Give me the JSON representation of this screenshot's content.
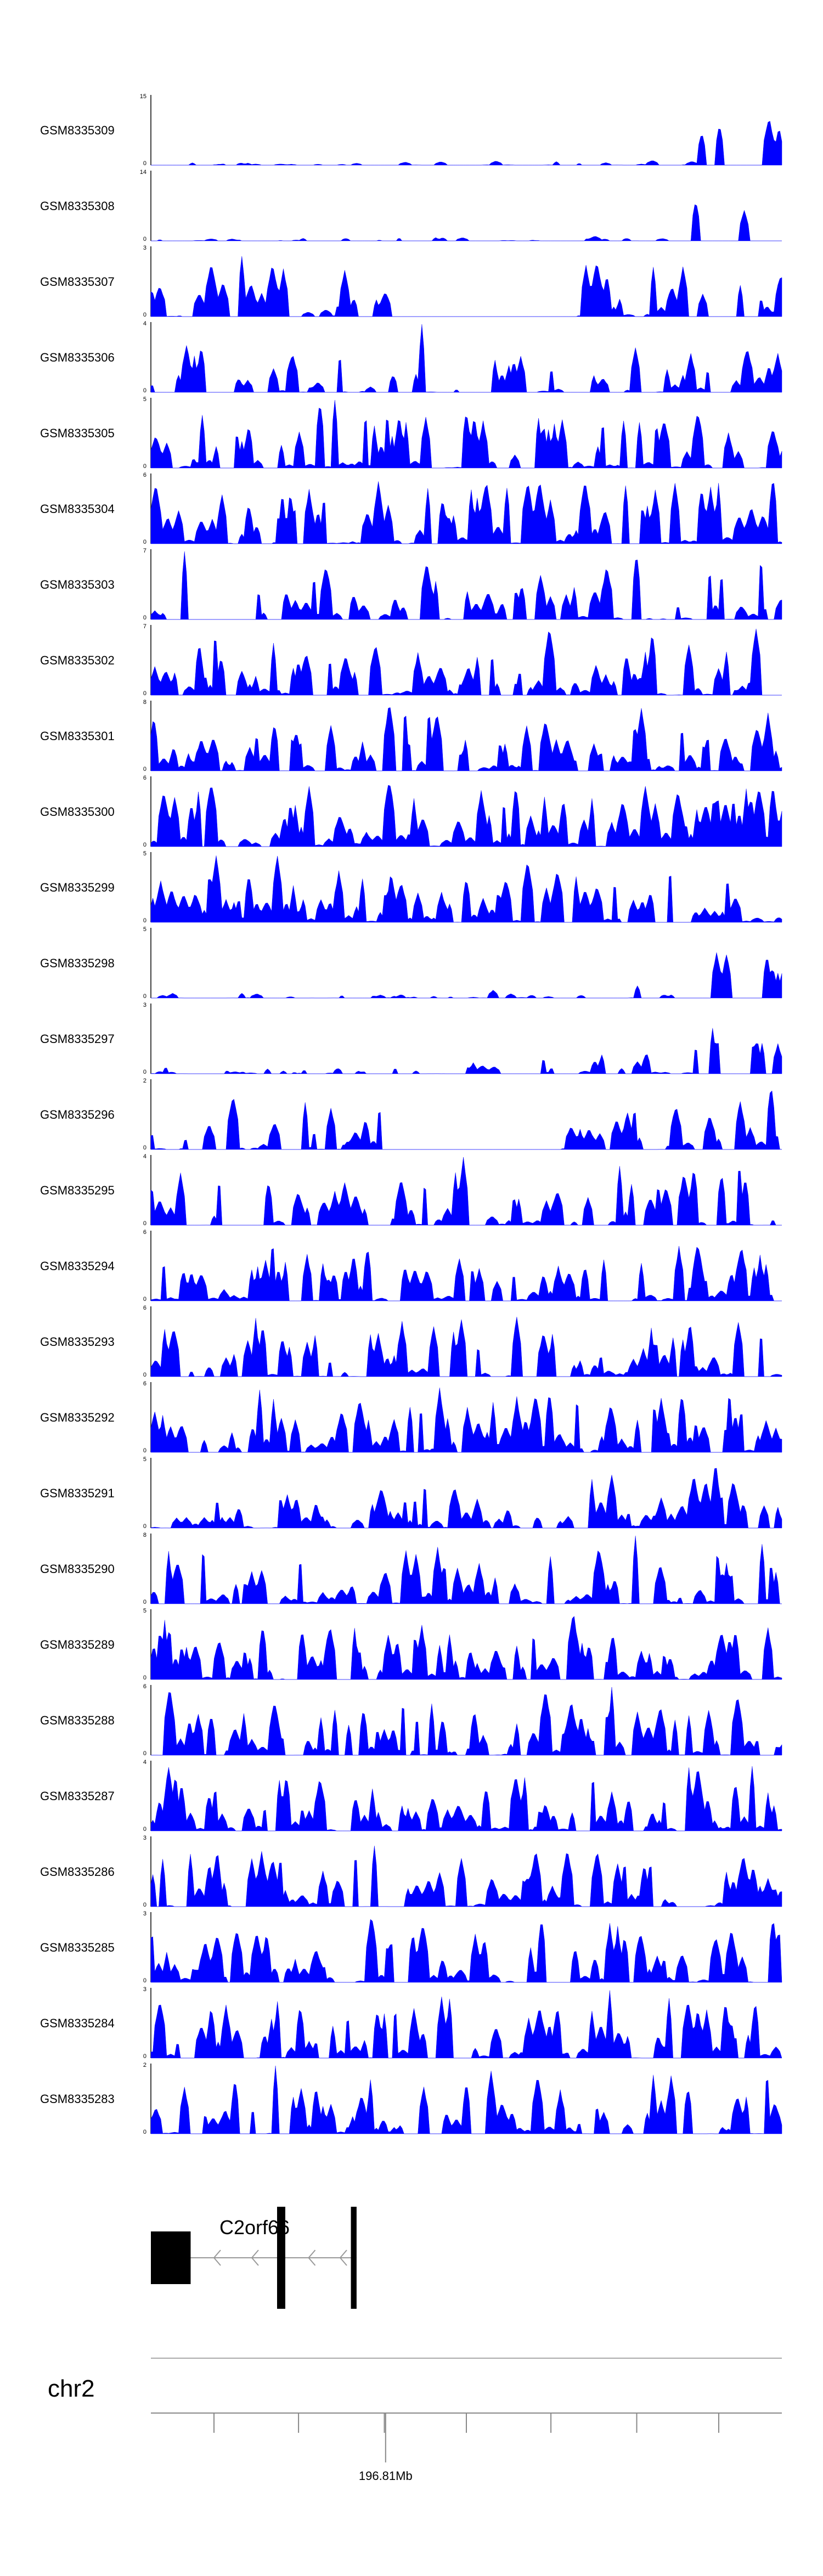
{
  "colors": {
    "signal": "#0000ff",
    "axis": "#000000",
    "intron": "#999999",
    "background": "#ffffff"
  },
  "chart_data": {
    "type": "area",
    "title": "",
    "tracks": [
      {
        "name": "GSM8335309",
        "ymax": "15",
        "ymin": "0",
        "max": 15,
        "profile": "rise",
        "sparse": 0.62,
        "peak": 0.28,
        "seed": 309
      },
      {
        "name": "GSM8335308",
        "ymax": "14",
        "ymin": "0",
        "max": 14,
        "profile": "rise",
        "sparse": 0.55,
        "peak": 0.32,
        "seed": 308
      },
      {
        "name": "GSM8335307",
        "ymax": "3",
        "ymin": "0",
        "max": 3,
        "profile": "sparse-gap",
        "sparse": 0.3,
        "peak": 0.85,
        "seed": 307
      },
      {
        "name": "GSM8335306",
        "ymax": "4",
        "ymin": "0",
        "max": 4,
        "profile": "sparse",
        "sparse": 0.35,
        "peak": 0.7,
        "seed": 306
      },
      {
        "name": "GSM8335305",
        "ymax": "5",
        "ymin": "0",
        "max": 5,
        "profile": "flat",
        "sparse": 0.12,
        "peak": 0.95,
        "seed": 305
      },
      {
        "name": "GSM8335304",
        "ymax": "6",
        "ymin": "0",
        "max": 6,
        "profile": "flat",
        "sparse": 0.1,
        "peak": 0.95,
        "seed": 304
      },
      {
        "name": "GSM8335303",
        "ymax": "7",
        "ymin": "0",
        "max": 7,
        "profile": "flat",
        "sparse": 0.3,
        "peak": 0.95,
        "seed": 303
      },
      {
        "name": "GSM8335302",
        "ymax": "7",
        "ymin": "0",
        "max": 7,
        "profile": "flat",
        "sparse": 0.15,
        "peak": 0.95,
        "seed": 302
      },
      {
        "name": "GSM8335301",
        "ymax": "8",
        "ymin": "0",
        "max": 8,
        "profile": "flat",
        "sparse": 0.12,
        "peak": 0.95,
        "seed": 301
      },
      {
        "name": "GSM8335300",
        "ymax": "6",
        "ymin": "0",
        "max": 6,
        "profile": "flat",
        "sparse": 0.12,
        "peak": 0.95,
        "seed": 300
      },
      {
        "name": "GSM8335299",
        "ymax": "5",
        "ymin": "0",
        "max": 5,
        "profile": "flat",
        "sparse": 0.1,
        "peak": 0.95,
        "seed": 299
      },
      {
        "name": "GSM8335298",
        "ymax": "5",
        "ymin": "0",
        "max": 5,
        "profile": "rise",
        "sparse": 0.4,
        "peak": 0.35,
        "seed": 298
      },
      {
        "name": "GSM8335297",
        "ymax": "3",
        "ymin": "0",
        "max": 3,
        "profile": "rise",
        "sparse": 0.35,
        "peak": 0.6,
        "seed": 297
      },
      {
        "name": "GSM8335296",
        "ymax": "2",
        "ymin": "0",
        "max": 2,
        "profile": "sparse-gap",
        "sparse": 0.3,
        "peak": 0.8,
        "seed": 296
      },
      {
        "name": "GSM8335295",
        "ymax": "4",
        "ymin": "0",
        "max": 4,
        "profile": "flat",
        "sparse": 0.25,
        "peak": 0.9,
        "seed": 295
      },
      {
        "name": "GSM8335294",
        "ymax": "6",
        "ymin": "0",
        "max": 6,
        "profile": "flat",
        "sparse": 0.15,
        "peak": 0.9,
        "seed": 294
      },
      {
        "name": "GSM8335293",
        "ymax": "6",
        "ymin": "0",
        "max": 6,
        "profile": "flat",
        "sparse": 0.1,
        "peak": 0.95,
        "seed": 293
      },
      {
        "name": "GSM8335292",
        "ymax": "6",
        "ymin": "0",
        "max": 6,
        "profile": "flat",
        "sparse": 0.12,
        "peak": 0.95,
        "seed": 292
      },
      {
        "name": "GSM8335291",
        "ymax": "5",
        "ymin": "0",
        "max": 5,
        "profile": "flat",
        "sparse": 0.1,
        "peak": 0.9,
        "seed": 291
      },
      {
        "name": "GSM8335290",
        "ymax": "8",
        "ymin": "0",
        "max": 8,
        "profile": "flat",
        "sparse": 0.08,
        "peak": 0.9,
        "seed": 290
      },
      {
        "name": "GSM8335289",
        "ymax": "5",
        "ymin": "0",
        "max": 5,
        "profile": "flat",
        "sparse": 0.1,
        "peak": 0.9,
        "seed": 289
      },
      {
        "name": "GSM8335288",
        "ymax": "6",
        "ymin": "0",
        "max": 6,
        "profile": "flat",
        "sparse": 0.1,
        "peak": 0.95,
        "seed": 288
      },
      {
        "name": "GSM8335287",
        "ymax": "4",
        "ymin": "0",
        "max": 4,
        "profile": "flat",
        "sparse": 0.08,
        "peak": 0.95,
        "seed": 287
      },
      {
        "name": "GSM8335286",
        "ymax": "3",
        "ymin": "0",
        "max": 3,
        "profile": "flat",
        "sparse": 0.1,
        "peak": 0.95,
        "seed": 286
      },
      {
        "name": "GSM8335285",
        "ymax": "3",
        "ymin": "0",
        "max": 3,
        "profile": "flat",
        "sparse": 0.12,
        "peak": 0.9,
        "seed": 285
      },
      {
        "name": "GSM8335284",
        "ymax": "3",
        "ymin": "0",
        "max": 3,
        "profile": "flat",
        "sparse": 0.2,
        "peak": 0.9,
        "seed": 284
      },
      {
        "name": "GSM8335283",
        "ymax": "2",
        "ymin": "0",
        "max": 2,
        "profile": "flat",
        "sparse": 0.12,
        "peak": 0.9,
        "seed": 283
      }
    ],
    "gene": {
      "label": "C2orf66",
      "strand": "-",
      "exons": [
        [
          0.0,
          0.063
        ],
        [
          0.2,
          0.213
        ],
        [
          0.317,
          0.326
        ]
      ],
      "exon_heights": [
        "thick",
        "tall",
        "tall"
      ],
      "intron_span": [
        0.063,
        0.326
      ],
      "arrows": [
        0.1,
        0.16,
        0.25,
        0.3
      ]
    },
    "ideogram": {
      "chromosome": "chr2"
    },
    "genome_axis": {
      "tick_fractions": [
        0.1,
        0.234,
        0.37,
        0.5,
        0.634,
        0.77,
        0.9
      ],
      "labeled_tick": {
        "fraction": 0.372,
        "label": "196.81Mb"
      }
    }
  }
}
